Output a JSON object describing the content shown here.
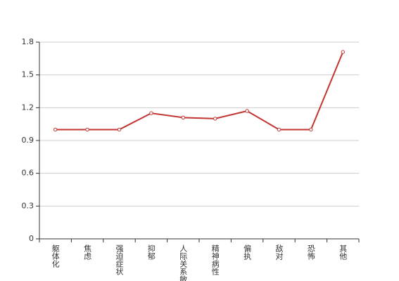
{
  "chart_data": {
    "type": "line",
    "categories": [
      "躯体化",
      "焦虑",
      "强迫症状",
      "抑郁",
      "人际关系敏感",
      "精神病性",
      "偏执",
      "敌对",
      "恐怖",
      "其他"
    ],
    "series": [
      {
        "color": "#c23531",
        "values": [
          1,
          1,
          1,
          1.15,
          1.11,
          1.1,
          1.17,
          1,
          1,
          1.71
        ]
      }
    ],
    "ylim": [
      0,
      1.8
    ],
    "yticks": [
      0,
      0.3,
      0.6,
      0.9,
      1.2,
      1.5,
      1.8
    ],
    "grid": true
  }
}
